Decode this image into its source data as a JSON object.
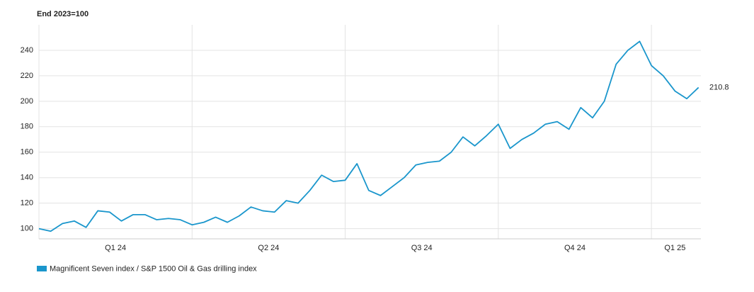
{
  "chart_data": {
    "type": "line",
    "ylabel": "End 2023=100",
    "x": [
      0,
      1,
      2,
      3,
      4,
      5,
      6,
      7,
      8,
      9,
      10,
      11,
      12,
      13,
      14,
      15,
      16,
      17,
      18,
      19,
      20,
      21,
      22,
      23,
      24,
      25,
      26,
      27,
      28,
      29,
      30,
      31,
      32,
      33,
      34,
      35,
      36,
      37,
      38,
      39,
      40,
      41,
      42,
      43,
      44,
      45,
      46,
      47,
      48,
      49,
      50,
      51,
      52,
      53,
      54,
      55,
      56
    ],
    "series": [
      {
        "name": "Magnificent Seven index / S&P 1500 Oil & Gas drilling index",
        "color": "#1a96cc",
        "values": [
          100,
          98,
          104,
          106,
          101,
          114,
          113,
          106,
          111,
          111,
          107,
          108,
          107,
          103,
          105,
          109,
          105,
          110,
          117,
          114,
          113,
          122,
          120,
          130,
          142,
          137,
          138,
          151,
          130,
          126,
          133,
          140,
          150,
          152,
          153,
          160,
          172,
          165,
          173,
          182,
          163,
          170,
          175,
          182,
          184,
          178,
          195,
          187,
          200,
          229,
          240,
          247,
          228,
          220,
          208,
          202,
          210.8
        ]
      }
    ],
    "xlim": [
      0,
      56.2
    ],
    "xticks": [
      {
        "value": 6.5,
        "label": "Q1 24"
      },
      {
        "value": 19.5,
        "label": "Q2 24"
      },
      {
        "value": 32.5,
        "label": "Q3 24"
      },
      {
        "value": 45.5,
        "label": "Q4 24"
      },
      {
        "value": 54,
        "label": "Q1 25"
      }
    ],
    "quarter_starts": [
      0,
      13,
      26,
      39,
      52
    ],
    "ylim": [
      92,
      260
    ],
    "yticks": [
      100,
      120,
      140,
      160,
      180,
      200,
      220,
      240
    ],
    "grid": true,
    "legend": "bottom-left"
  }
}
